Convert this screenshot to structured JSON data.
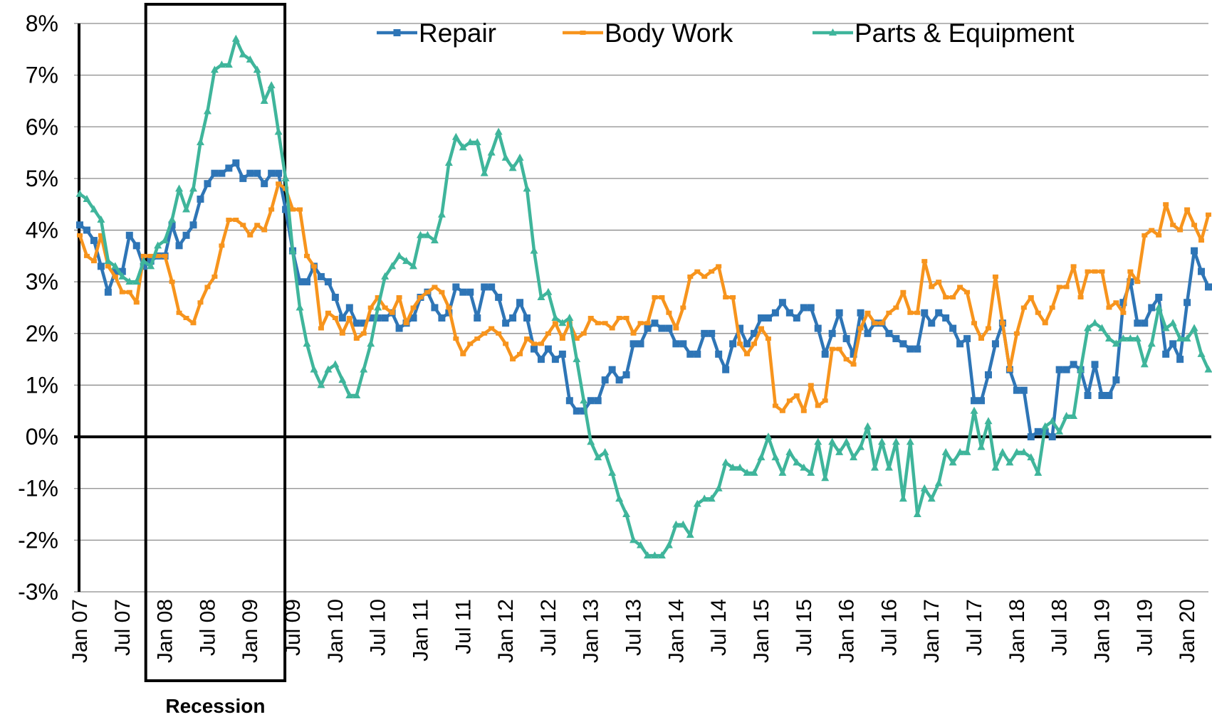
{
  "chart_data": {
    "type": "line",
    "categories": [
      "Jan 07",
      null,
      null,
      null,
      null,
      null,
      "Jul 07",
      null,
      null,
      null,
      null,
      null,
      "Jan 08",
      null,
      null,
      null,
      null,
      null,
      "Jul 08",
      null,
      null,
      null,
      null,
      null,
      "Jan 09",
      null,
      null,
      null,
      null,
      null,
      "Jul 09",
      null,
      null,
      null,
      null,
      null,
      "Jan 10",
      null,
      null,
      null,
      null,
      null,
      "Jul 10",
      null,
      null,
      null,
      null,
      null,
      "Jan 11",
      null,
      null,
      null,
      null,
      null,
      "Jul 11",
      null,
      null,
      null,
      null,
      null,
      "Jan 12",
      null,
      null,
      null,
      null,
      null,
      "Jul 12",
      null,
      null,
      null,
      null,
      null,
      "Jan 13",
      null,
      null,
      null,
      null,
      null,
      "Jul 13",
      null,
      null,
      null,
      null,
      null,
      "Jan 14",
      null,
      null,
      null,
      null,
      null,
      "Jul 14",
      null,
      null,
      null,
      null,
      null,
      "Jan 15",
      null,
      null,
      null,
      null,
      null,
      "Jul 15",
      null,
      null,
      null,
      null,
      null,
      "Jan 16",
      null,
      null,
      null,
      null,
      null,
      "Jul 16",
      null,
      null,
      null,
      null,
      null,
      "Jan 17",
      null,
      null,
      null,
      null,
      null,
      "Jul 17",
      null,
      null,
      null,
      null,
      null,
      "Jan 18",
      null,
      null,
      null,
      null,
      null,
      "Jul 18",
      null,
      null,
      null,
      null,
      null,
      "Jan 19",
      null,
      null,
      null,
      null,
      null,
      "Jul 19",
      null,
      null,
      null,
      null,
      null,
      "Jan 20",
      null,
      null,
      null
    ],
    "series": [
      {
        "name": "Repair",
        "color": "#2e75b6",
        "marker": "square",
        "values": [
          4.1,
          4.0,
          3.8,
          3.3,
          2.8,
          3.2,
          3.2,
          3.9,
          3.7,
          3.3,
          3.4,
          3.5,
          3.5,
          4.1,
          3.7,
          3.9,
          4.1,
          4.6,
          4.9,
          5.1,
          5.1,
          5.2,
          5.3,
          5.0,
          5.1,
          5.1,
          4.9,
          5.1,
          5.1,
          4.4,
          3.6,
          3.0,
          3.0,
          3.3,
          3.1,
          3.0,
          2.7,
          2.3,
          2.5,
          2.2,
          2.2,
          2.3,
          2.3,
          2.3,
          2.4,
          2.1,
          2.2,
          2.3,
          2.7,
          2.8,
          2.5,
          2.3,
          2.4,
          2.9,
          2.8,
          2.8,
          2.3,
          2.9,
          2.9,
          2.7,
          2.2,
          2.3,
          2.6,
          2.3,
          1.7,
          1.5,
          1.7,
          1.5,
          1.6,
          0.7,
          0.5,
          0.5,
          0.7,
          0.7,
          1.1,
          1.3,
          1.1,
          1.2,
          1.8,
          1.8,
          2.1,
          2.2,
          2.1,
          2.1,
          1.8,
          1.8,
          1.6,
          1.6,
          2.0,
          2.0,
          1.6,
          1.3,
          1.8,
          2.1,
          1.8,
          2.0,
          2.3,
          2.3,
          2.4,
          2.6,
          2.4,
          2.3,
          2.5,
          2.5,
          2.1,
          1.6,
          2.0,
          2.4,
          1.9,
          1.6,
          2.4,
          2.0,
          2.2,
          2.2,
          2.0,
          1.9,
          1.8,
          1.7,
          1.7,
          2.4,
          2.2,
          2.4,
          2.3,
          2.1,
          1.8,
          1.9,
          0.7,
          0.7,
          1.2,
          1.8,
          2.2,
          1.3,
          0.9,
          0.9,
          0.0,
          0.1,
          0.1,
          0.0,
          1.3,
          1.3,
          1.4,
          1.3,
          0.8,
          1.4,
          0.8,
          0.8,
          1.1,
          2.6,
          3.0,
          2.2,
          2.2,
          2.5,
          2.7,
          1.6,
          1.8,
          1.5,
          2.6,
          3.6,
          3.2,
          2.9
        ]
      },
      {
        "name": "Body Work",
        "color": "#f7941d",
        "marker": "dash",
        "values": [
          3.9,
          3.5,
          3.4,
          3.9,
          3.3,
          3.1,
          2.8,
          2.8,
          2.6,
          3.5,
          3.5,
          3.5,
          3.5,
          3.0,
          2.4,
          2.3,
          2.2,
          2.6,
          2.9,
          3.1,
          3.7,
          4.2,
          4.2,
          4.1,
          3.9,
          4.1,
          4.0,
          4.4,
          4.9,
          4.8,
          4.4,
          4.4,
          3.5,
          3.3,
          2.1,
          2.4,
          2.3,
          2.0,
          2.3,
          1.9,
          2.0,
          2.5,
          2.7,
          2.5,
          2.4,
          2.7,
          2.2,
          2.5,
          2.7,
          2.8,
          2.9,
          2.8,
          2.5,
          1.9,
          1.6,
          1.8,
          1.9,
          2.0,
          2.1,
          2.0,
          1.8,
          1.5,
          1.6,
          1.9,
          1.8,
          1.8,
          2.0,
          2.2,
          1.9,
          2.2,
          1.9,
          2.0,
          2.3,
          2.2,
          2.2,
          2.1,
          2.3,
          2.3,
          2.0,
          2.2,
          2.2,
          2.7,
          2.7,
          2.4,
          2.1,
          2.5,
          3.1,
          3.2,
          3.1,
          3.2,
          3.3,
          2.7,
          2.7,
          1.8,
          1.6,
          1.8,
          2.1,
          1.9,
          0.6,
          0.5,
          0.7,
          0.8,
          0.5,
          1.0,
          0.6,
          0.7,
          1.7,
          1.7,
          1.5,
          1.4,
          2.1,
          2.4,
          2.2,
          2.2,
          2.4,
          2.5,
          2.8,
          2.4,
          2.4,
          3.4,
          2.9,
          3.0,
          2.7,
          2.7,
          2.9,
          2.8,
          2.2,
          1.9,
          2.1,
          3.1,
          2.2,
          1.3,
          2.0,
          2.5,
          2.7,
          2.4,
          2.2,
          2.5,
          2.9,
          2.9,
          3.3,
          2.7,
          3.2,
          3.2,
          3.2,
          2.5,
          2.6,
          2.4,
          3.2,
          3.0,
          3.9,
          4.0,
          3.9,
          4.5,
          4.1,
          4.0,
          4.4,
          4.1,
          3.8,
          4.3
        ]
      },
      {
        "name": "Parts & Equipment",
        "color": "#3fb59b",
        "marker": "triangle",
        "values": [
          4.7,
          4.6,
          4.4,
          4.2,
          3.4,
          3.3,
          3.1,
          3.0,
          3.0,
          3.4,
          3.3,
          3.7,
          3.8,
          4.2,
          4.8,
          4.4,
          4.8,
          5.7,
          6.3,
          7.1,
          7.2,
          7.2,
          7.7,
          7.4,
          7.3,
          7.1,
          6.5,
          6.8,
          5.9,
          5.0,
          3.6,
          2.5,
          1.8,
          1.3,
          1.0,
          1.3,
          1.4,
          1.1,
          0.8,
          0.8,
          1.3,
          1.8,
          2.5,
          3.1,
          3.3,
          3.5,
          3.4,
          3.3,
          3.9,
          3.9,
          3.8,
          4.3,
          5.3,
          5.8,
          5.6,
          5.7,
          5.7,
          5.1,
          5.5,
          5.9,
          5.4,
          5.2,
          5.4,
          4.8,
          3.6,
          2.7,
          2.8,
          2.3,
          2.2,
          2.3,
          1.5,
          0.7,
          -0.1,
          -0.4,
          -0.3,
          -0.7,
          -1.2,
          -1.5,
          -2.0,
          -2.1,
          -2.3,
          -2.3,
          -2.3,
          -2.1,
          -1.7,
          -1.7,
          -1.9,
          -1.3,
          -1.2,
          -1.2,
          -1.0,
          -0.5,
          -0.6,
          -0.6,
          -0.7,
          -0.7,
          -0.4,
          0.0,
          -0.4,
          -0.7,
          -0.3,
          -0.5,
          -0.6,
          -0.7,
          -0.1,
          -0.8,
          -0.1,
          -0.3,
          -0.1,
          -0.4,
          -0.2,
          0.2,
          -0.6,
          -0.1,
          -0.6,
          -0.1,
          -1.2,
          -0.1,
          -1.5,
          -1.0,
          -1.2,
          -0.9,
          -0.3,
          -0.5,
          -0.3,
          -0.3,
          0.5,
          -0.2,
          0.3,
          -0.6,
          -0.3,
          -0.5,
          -0.3,
          -0.3,
          -0.4,
          -0.7,
          0.2,
          0.3,
          0.1,
          0.4,
          0.4,
          1.3,
          2.1,
          2.2,
          2.1,
          1.9,
          1.8,
          1.9,
          1.9,
          1.9,
          1.4,
          1.8,
          2.5,
          2.1,
          2.2,
          1.9,
          1.9,
          2.1,
          1.6,
          1.3
        ]
      }
    ],
    "ylim": [
      -3,
      8
    ],
    "yticks": [
      {
        "value": -3,
        "label": "-3%"
      },
      {
        "value": -2,
        "label": "-2%"
      },
      {
        "value": -1,
        "label": "-1%"
      },
      {
        "value": 0,
        "label": "0%"
      },
      {
        "value": 1,
        "label": "1%"
      },
      {
        "value": 2,
        "label": "2%"
      },
      {
        "value": 3,
        "label": "3%"
      },
      {
        "value": 4,
        "label": "4%"
      },
      {
        "value": 5,
        "label": "5%"
      },
      {
        "value": 6,
        "label": "6%"
      },
      {
        "value": 7,
        "label": "7%"
      },
      {
        "value": 8,
        "label": "8%"
      }
    ],
    "grid": true,
    "legend": "top",
    "annotations": [
      {
        "text": "Recession"
      }
    ]
  }
}
